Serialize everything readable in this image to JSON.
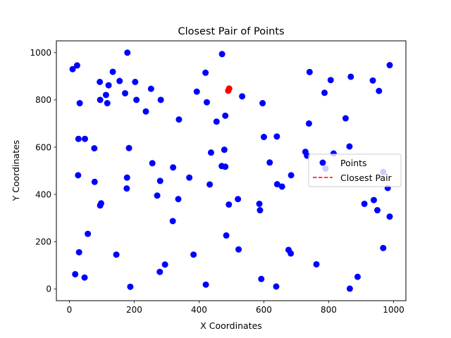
{
  "chart_data": {
    "type": "scatter",
    "title": "Closest Pair of Points",
    "xlabel": "X Coordinates",
    "ylabel": "Y Coordinates",
    "xlim": [
      -40,
      1038
    ],
    "ylim": [
      -50,
      1050
    ],
    "xticks": [
      0,
      200,
      400,
      600,
      800,
      1000
    ],
    "yticks": [
      0,
      200,
      400,
      600,
      800,
      1000
    ],
    "grid": false,
    "legend": {
      "position": "right",
      "entries": [
        {
          "label": "Points",
          "marker": "circle",
          "color": "#0000ff"
        },
        {
          "label": "Closest Pair",
          "marker": "dashed-line",
          "color": "#ff0000"
        }
      ]
    },
    "series": [
      {
        "name": "Points",
        "color": "#0000ff",
        "points": [
          [
            10,
            930
          ],
          [
            24,
            946
          ],
          [
            32,
            786
          ],
          [
            28,
            635
          ],
          [
            48,
            635
          ],
          [
            27,
            481
          ],
          [
            77,
            595
          ],
          [
            78,
            453
          ],
          [
            95,
            353
          ],
          [
            98,
            362
          ],
          [
            57,
            233
          ],
          [
            30,
            155
          ],
          [
            47,
            48
          ],
          [
            18,
            62
          ],
          [
            95,
            800
          ],
          [
            94,
            876
          ],
          [
            113,
            821
          ],
          [
            117,
            786
          ],
          [
            121,
            862
          ],
          [
            134,
            919
          ],
          [
            155,
            880
          ],
          [
            172,
            828
          ],
          [
            179,
            1000
          ],
          [
            184,
            596
          ],
          [
            178,
            471
          ],
          [
            177,
            425
          ],
          [
            145,
            145
          ],
          [
            188,
            9
          ],
          [
            203,
            876
          ],
          [
            207,
            800
          ],
          [
            236,
            751
          ],
          [
            252,
            847
          ],
          [
            282,
            800
          ],
          [
            256,
            532
          ],
          [
            280,
            457
          ],
          [
            271,
            395
          ],
          [
            320,
            514
          ],
          [
            336,
            380
          ],
          [
            319,
            287
          ],
          [
            338,
            717
          ],
          [
            279,
            72
          ],
          [
            295,
            103
          ],
          [
            370,
            471
          ],
          [
            393,
            835
          ],
          [
            420,
            915
          ],
          [
            424,
            790
          ],
          [
            433,
            442
          ],
          [
            437,
            577
          ],
          [
            454,
            708
          ],
          [
            383,
            145
          ],
          [
            421,
            18
          ],
          [
            470,
            520
          ],
          [
            478,
            589
          ],
          [
            481,
            517
          ],
          [
            481,
            733
          ],
          [
            484,
            226
          ],
          [
            492,
            357
          ],
          [
            471,
            994
          ],
          [
            520,
            380
          ],
          [
            533,
            815
          ],
          [
            522,
            167
          ],
          [
            586,
            360
          ],
          [
            588,
            333
          ],
          [
            596,
            786
          ],
          [
            600,
            643
          ],
          [
            618,
            535
          ],
          [
            640,
            645
          ],
          [
            641,
            443
          ],
          [
            656,
            433
          ],
          [
            684,
            481
          ],
          [
            676,
            165
          ],
          [
            683,
            150
          ],
          [
            592,
            42
          ],
          [
            638,
            10
          ],
          [
            741,
            918
          ],
          [
            739,
            700
          ],
          [
            728,
            580
          ],
          [
            733,
            564
          ],
          [
            762,
            104
          ],
          [
            787,
            830
          ],
          [
            806,
            884
          ],
          [
            790,
            509
          ],
          [
            815,
            573
          ],
          [
            852,
            722
          ],
          [
            864,
            603
          ],
          [
            868,
            898
          ],
          [
            865,
            1
          ],
          [
            889,
            51
          ],
          [
            910,
            360
          ],
          [
            939,
            376
          ],
          [
            950,
            333
          ],
          [
            936,
            882
          ],
          [
            955,
            838
          ],
          [
            968,
            495
          ],
          [
            968,
            173
          ],
          [
            982,
            427
          ],
          [
            988,
            947
          ],
          [
            988,
            306
          ]
        ]
      },
      {
        "name": "Closest Pair",
        "color": "#ff0000",
        "points": [
          [
            490,
            839
          ],
          [
            493,
            848
          ]
        ]
      }
    ]
  }
}
